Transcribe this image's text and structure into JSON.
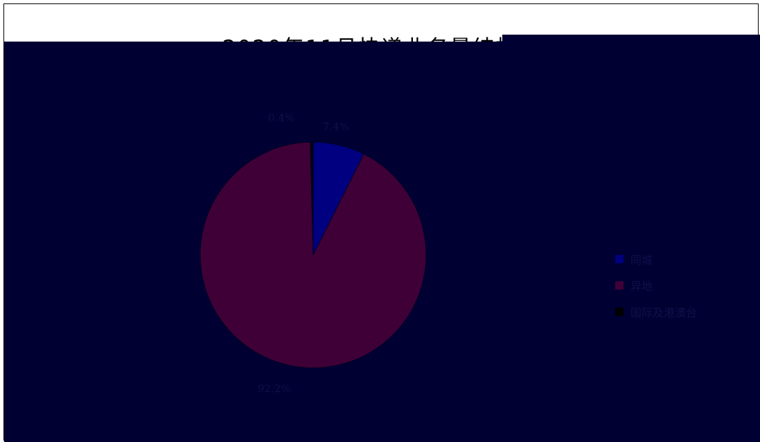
{
  "chart_data": {
    "type": "pie",
    "title": "2020年11月快递业务量结构图",
    "categories": [
      "同城",
      "异地",
      "国际及港澳台"
    ],
    "values": [
      7.4,
      92.2,
      0.4
    ],
    "colors": [
      "#000080",
      "#3f0038",
      "#000000"
    ],
    "data_labels": [
      "7.4%",
      "92.2%",
      "0.4%"
    ],
    "legend_position": "right"
  },
  "colors": {
    "panel_background": "#000033",
    "label_text": "#101049"
  }
}
